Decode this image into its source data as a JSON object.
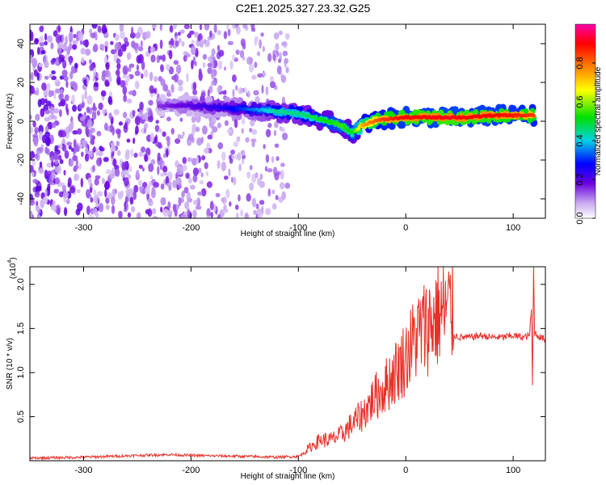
{
  "title": "C2E1.2025.327.23.32.G25",
  "chart_data": [
    {
      "type": "heatmap",
      "panel": "spectrogram",
      "xlabel": "Height of straight line (km)",
      "ylabel": "Frequency (Hz)",
      "xlim": [
        -350,
        130
      ],
      "ylim": [
        -50,
        50
      ],
      "xticks": [
        -300,
        -200,
        -100,
        0,
        100
      ],
      "yticks": [
        -40,
        -20,
        0,
        20,
        40
      ],
      "xtick_labels": [
        "-300",
        "-200",
        "-100",
        "0",
        "100"
      ],
      "ytick_labels": [
        "-40",
        "-20",
        "0",
        "20",
        "40"
      ],
      "colorbar": {
        "label": "Normalized spectral amplitude",
        "range": [
          0,
          1
        ],
        "ticks": [
          0.0,
          0.2,
          0.4,
          0.6,
          0.8
        ],
        "tick_labels": [
          "0.0",
          "0.2",
          "0.4",
          "0.6",
          "0.8"
        ],
        "colors": [
          "#ffffff",
          "#c7a8f0",
          "#6a00e0",
          "#0000ff",
          "#00d2e6",
          "#00e000",
          "#ffff00",
          "#ff8000",
          "#ff0000",
          "#ff00aa"
        ]
      },
      "ridge": {
        "x": [
          -230,
          -200,
          -170,
          -140,
          -120,
          -100,
          -80,
          -60,
          -50,
          -40,
          -30,
          -20,
          0,
          20,
          40,
          60,
          80,
          100,
          120
        ],
        "y": [
          8,
          8,
          7,
          6,
          5,
          4,
          1,
          -2,
          -6,
          -2,
          0,
          1,
          2,
          2,
          2,
          2,
          3,
          3,
          3
        ],
        "amp": [
          0.15,
          0.2,
          0.25,
          0.35,
          0.45,
          0.45,
          0.5,
          0.55,
          0.5,
          0.75,
          0.8,
          0.85,
          0.9,
          0.9,
          0.92,
          0.9,
          0.9,
          0.88,
          0.85
        ]
      },
      "noise_region_x": [
        -350,
        -110
      ]
    },
    {
      "type": "line",
      "panel": "snr",
      "xlabel": "Height of straight line (km)",
      "ylabel": "SNR (10 * v/v)",
      "scale_label": "(x10",
      "scale_exp": "4",
      "xlim": [
        -350,
        130
      ],
      "ylim": [
        0,
        2.2
      ],
      "xticks": [
        -300,
        -200,
        -100,
        0,
        100
      ],
      "yticks": [
        0.5,
        1.0,
        1.5,
        2.0
      ],
      "xtick_labels": [
        "-300",
        "-200",
        "-100",
        "0",
        "100"
      ],
      "ytick_labels": [
        "0.5",
        "1.0",
        "1.5",
        "2.0"
      ],
      "line_color": "#e8302a",
      "series": [
        {
          "name": "SNR",
          "x": [
            -350,
            -300,
            -250,
            -220,
            -200,
            -150,
            -120,
            -100,
            -90,
            -80,
            -70,
            -60,
            -50,
            -40,
            -30,
            -20,
            -10,
            0,
            10,
            20,
            30,
            40,
            50,
            60,
            70,
            80,
            90,
            100,
            110,
            115,
            117,
            118,
            119,
            120,
            125,
            130
          ],
          "y": [
            0.03,
            0.04,
            0.06,
            0.07,
            0.06,
            0.05,
            0.04,
            0.05,
            0.12,
            0.2,
            0.2,
            0.25,
            0.35,
            0.45,
            0.6,
            0.7,
            0.85,
            1.0,
            1.2,
            1.3,
            1.4,
            1.45,
            1.4,
            1.4,
            1.42,
            1.4,
            1.4,
            1.42,
            1.4,
            1.42,
            1.7,
            0.85,
            2.2,
            1.45,
            1.4,
            1.38
          ]
        }
      ]
    }
  ]
}
